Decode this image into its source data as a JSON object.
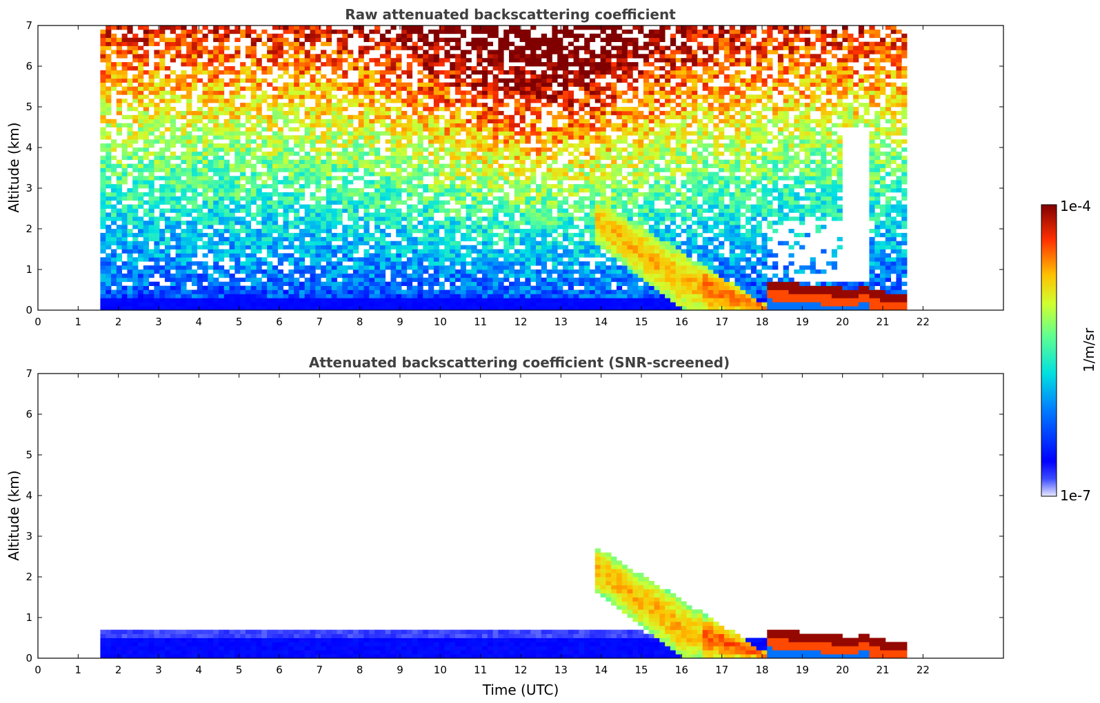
{
  "chart_data": [
    {
      "type": "heatmap",
      "title": "Raw attenuated backscattering coefficient",
      "xlabel": "",
      "ylabel": "Altitude (km)",
      "xlim": [
        0,
        24
      ],
      "ylim": [
        0,
        7
      ],
      "xticks": [
        0,
        1,
        2,
        3,
        4,
        5,
        6,
        7,
        8,
        9,
        10,
        11,
        12,
        13,
        14,
        15,
        16,
        17,
        18,
        19,
        20,
        21,
        22
      ],
      "yticks": [
        0,
        1,
        2,
        3,
        4,
        5,
        6,
        7
      ],
      "data_time_range": [
        1.55,
        21.6
      ],
      "screened": false,
      "cloud_top_km": [
        {
          "t": 17.0,
          "alt": 0.5
        },
        {
          "t": 18.1,
          "alt": 0.6
        },
        {
          "t": 19.0,
          "alt": 0.5
        },
        {
          "t": 20.0,
          "alt": 0.45
        },
        {
          "t": 20.5,
          "alt": 0.55
        },
        {
          "t": 21.6,
          "alt": 0.3
        }
      ]
    },
    {
      "type": "heatmap",
      "title": "Attenuated backscattering coefficient (SNR-screened)",
      "xlabel": "Time (UTC)",
      "ylabel": "Altitude (km)",
      "xlim": [
        0,
        24
      ],
      "ylim": [
        0,
        7
      ],
      "xticks": [
        0,
        1,
        2,
        3,
        4,
        5,
        6,
        7,
        8,
        9,
        10,
        11,
        12,
        13,
        14,
        15,
        16,
        17,
        18,
        19,
        20,
        21,
        22
      ],
      "yticks": [
        0,
        1,
        2,
        3,
        4,
        5,
        6,
        7
      ],
      "data_time_range": [
        1.55,
        21.6
      ],
      "screened": true
    }
  ],
  "colorbar": {
    "label": "1/m/sr",
    "max_label": "1e-4",
    "min_label": "1e-7",
    "scale": "log",
    "range": [
      1e-07,
      0.0001
    ]
  }
}
